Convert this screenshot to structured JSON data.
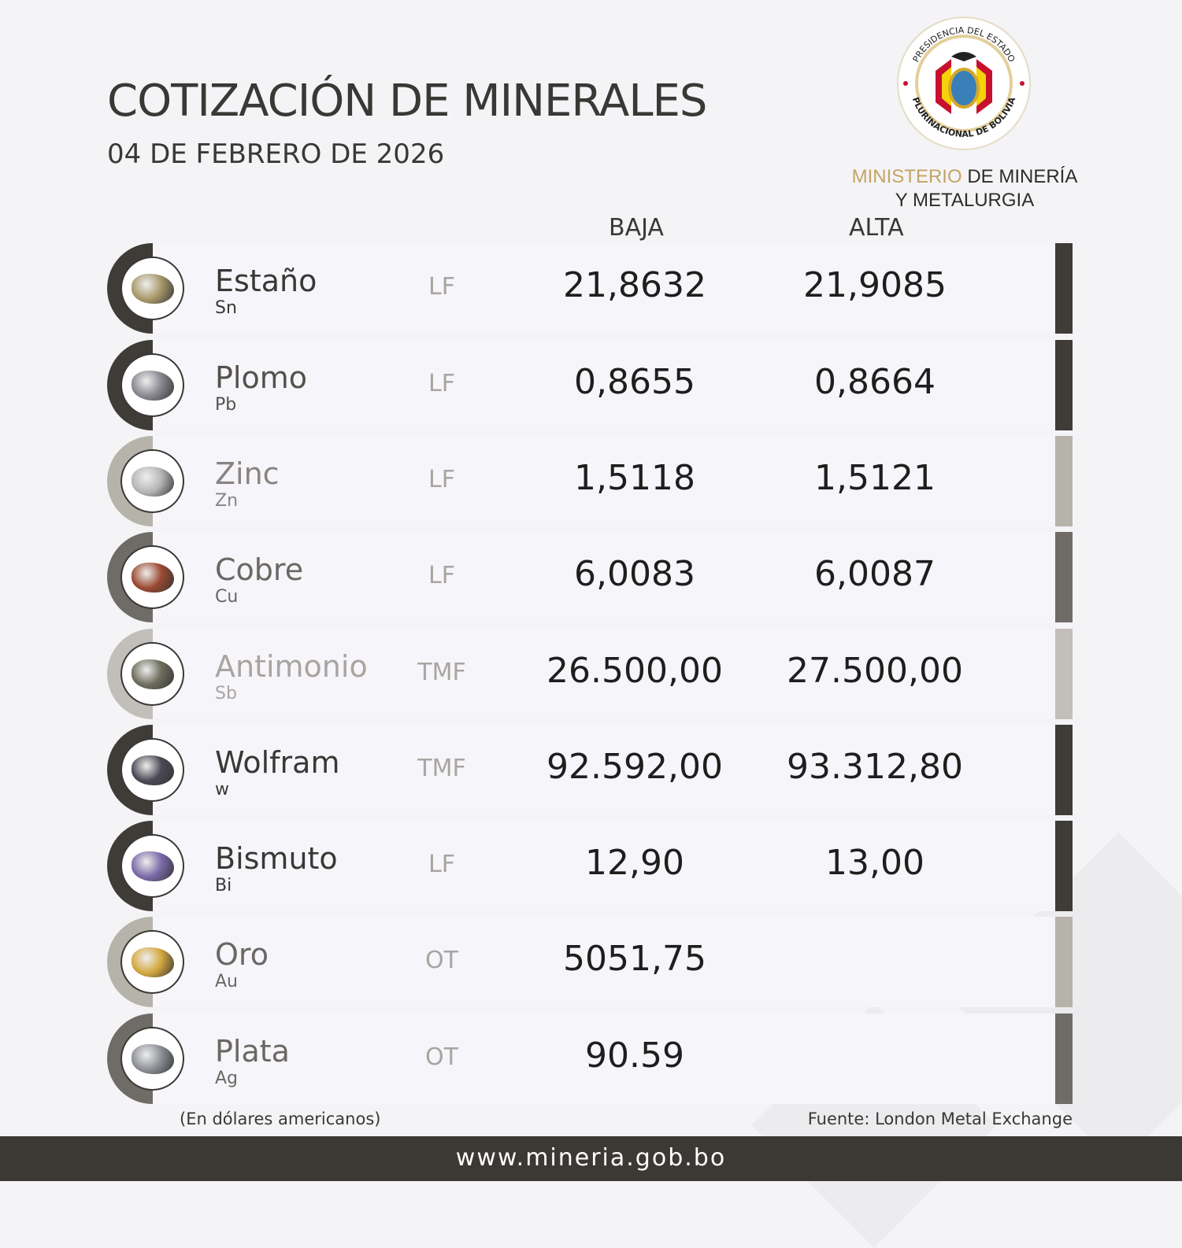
{
  "header": {
    "title": "COTIZACIÓN DE MINERALES",
    "date": "04 DE FEBRERO DE 2026"
  },
  "logo": {
    "seal_text_top": "PRESIDENCIA DEL ESTADO",
    "seal_text_bottom": "PLURINACIONAL DE BOLIVIA",
    "ministry_gold": "MINISTERIO",
    "ministry_rest": " DE MINERÍA",
    "ministry_line2": "Y METALURGIA"
  },
  "columns": {
    "baja": "BAJA",
    "alta": "ALTA"
  },
  "minerals": [
    {
      "name": "Estaño",
      "symbol": "Sn",
      "unit": "LF",
      "baja": "21,8632",
      "alta": "21,9085",
      "accent": "#3f3c38",
      "name_color": "#3a3835",
      "rock": "#a8986a"
    },
    {
      "name": "Plomo",
      "symbol": "Pb",
      "unit": "LF",
      "baja": "0,8655",
      "alta": "0,8664",
      "accent": "#3f3c38",
      "name_color": "#54514d",
      "rock": "#8a8790"
    },
    {
      "name": "Zinc",
      "symbol": "Zn",
      "unit": "LF",
      "baja": "1,5118",
      "alta": "1,5121",
      "accent": "#b5b3aa",
      "name_color": "#8a8481",
      "rock": "#b6b6b8"
    },
    {
      "name": "Cobre",
      "symbol": "Cu",
      "unit": "LF",
      "baja": "6,0083",
      "alta": "6,0087",
      "accent": "#6f6c67",
      "name_color": "#6b6763",
      "rock": "#9a4a32"
    },
    {
      "name": "Antimonio",
      "symbol": "Sb",
      "unit": "TMF",
      "baja": "26.500,00",
      "alta": "27.500,00",
      "accent": "#c2beb9",
      "name_color": "#aaa4a1",
      "rock": "#6d6c5c"
    },
    {
      "name": "Wolfram",
      "symbol": "w",
      "unit": "TMF",
      "baja": "92.592,00",
      "alta": "93.312,80",
      "accent": "#3f3c38",
      "name_color": "#3a3835",
      "rock": "#4b4a55"
    },
    {
      "name": "Bismuto",
      "symbol": "Bi",
      "unit": "LF",
      "baja": "12,90",
      "alta": "13,00",
      "accent": "#3f3c38",
      "name_color": "#3a3835",
      "rock": "#7a6aa8"
    },
    {
      "name": "Oro",
      "symbol": "Au",
      "unit": "OT",
      "baja": "5051,75",
      "alta": "",
      "accent": "#b5b3aa",
      "name_color": "#6b6763",
      "rock": "#d4a840"
    },
    {
      "name": "Plata",
      "symbol": "Ag",
      "unit": "OT",
      "baja": "90.59",
      "alta": "",
      "accent": "#6f6c67",
      "name_color": "#6b6763",
      "rock": "#8d9096"
    }
  ],
  "notes": {
    "currency": "(En dólares americanos)",
    "source": "Fuente: London Metal Exchange"
  },
  "footer": {
    "url": "www.mineria.gob.bo"
  }
}
